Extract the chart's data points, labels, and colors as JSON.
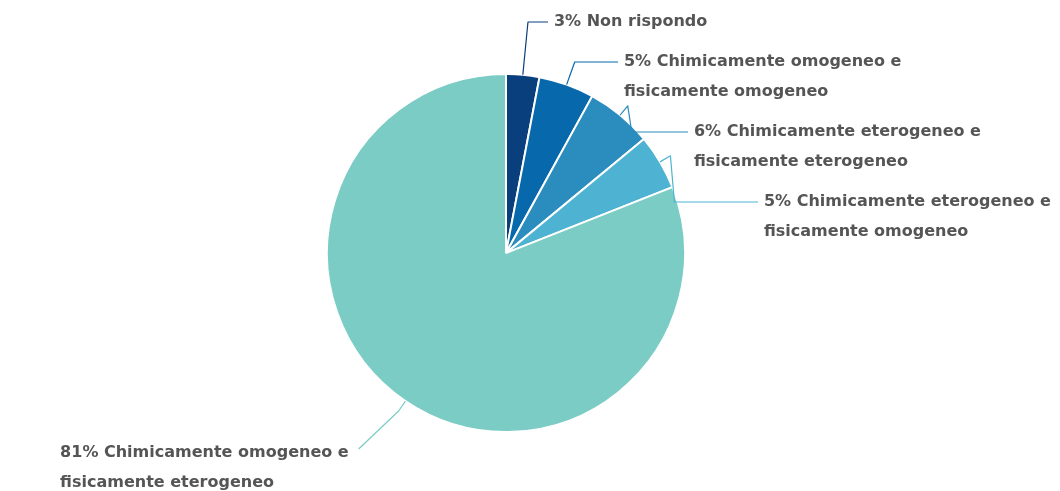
{
  "chart_data": {
    "type": "pie",
    "categories": [
      "Non rispondo",
      "Chimicamente omogeneo e fisicamente omogeneo",
      "Chimicamente eterogeneo e fisicamente eterogeneo",
      "Chimicamente eterogeneo e fisicamente omogeneo",
      "Chimicamente omogeneo e fisicamente eterogeneo"
    ],
    "values": [
      3,
      5,
      6,
      5,
      81
    ],
    "value_labels": [
      "3%",
      "5%",
      "6%",
      "5%",
      "81%"
    ],
    "colors": [
      "#0a3f7d",
      "#0868ac",
      "#2b8cbe",
      "#4eb3d3",
      "#7bccc4"
    ],
    "legend": false
  }
}
